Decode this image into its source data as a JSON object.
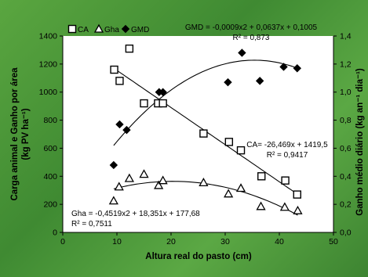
{
  "chart_data": {
    "type": "scatter",
    "xlabel": "Altura real do pasto (cm)",
    "ylabel_left": "Carga animal e Ganho por área (kg PV ha⁻¹)",
    "ylabel_right": "Ganho médio diário (kg an⁻¹ dia⁻¹)",
    "xlim": [
      0,
      50
    ],
    "ylim_left": [
      0,
      1400
    ],
    "ylim_right": [
      0,
      1.4
    ],
    "x_ticks": [
      "0",
      "10",
      "20",
      "30",
      "40",
      "50"
    ],
    "y_ticks_left": [
      "0",
      "200",
      "400",
      "600",
      "800",
      "1000",
      "1200",
      "1400"
    ],
    "y_ticks_right": [
      "0,0",
      "0,2",
      "0,4",
      "0,6",
      "0,8",
      "1,0",
      "1,2",
      "1,4"
    ],
    "legend": [
      "CA",
      "Gha",
      "GMD"
    ],
    "legend_position": "top-left",
    "series": [
      {
        "name": "CA",
        "marker": "square",
        "axis": "left",
        "points": [
          [
            9.5,
            1160
          ],
          [
            10.5,
            1080
          ],
          [
            12.3,
            1310
          ],
          [
            15.0,
            920
          ],
          [
            17.6,
            920
          ],
          [
            18.5,
            920
          ],
          [
            26.0,
            705
          ],
          [
            30.7,
            645
          ],
          [
            32.9,
            585
          ],
          [
            36.7,
            400
          ],
          [
            41.1,
            370
          ],
          [
            43.3,
            270
          ]
        ],
        "equation": "CA= -26,469x + 1419,5",
        "r2": "R² = 0,9417"
      },
      {
        "name": "Gha",
        "marker": "triangle",
        "axis": "left",
        "points": [
          [
            9.4,
            225
          ],
          [
            10.4,
            325
          ],
          [
            12.3,
            385
          ],
          [
            15.0,
            415
          ],
          [
            17.7,
            335
          ],
          [
            18.5,
            370
          ],
          [
            26.0,
            355
          ],
          [
            30.6,
            275
          ],
          [
            32.9,
            315
          ],
          [
            36.6,
            185
          ],
          [
            41.0,
            180
          ],
          [
            43.4,
            155
          ]
        ],
        "equation": "Gha = -0,4519x2 + 18,351x + 177,68",
        "r2": "R² = 0,7511"
      },
      {
        "name": "GMD",
        "marker": "diamond",
        "axis": "right",
        "points": [
          [
            9.4,
            0.48
          ],
          [
            10.5,
            0.77
          ],
          [
            11.8,
            0.73
          ],
          [
            17.8,
            1.0
          ],
          [
            18.5,
            1.0
          ],
          [
            30.5,
            1.07
          ],
          [
            33.1,
            1.28
          ],
          [
            36.4,
            1.08
          ],
          [
            40.8,
            1.18
          ],
          [
            43.3,
            1.17
          ]
        ],
        "equation": "GMD = -0,0009x2 + 0,0637x + 0,1005",
        "r2": "R² = 0,873"
      }
    ]
  }
}
